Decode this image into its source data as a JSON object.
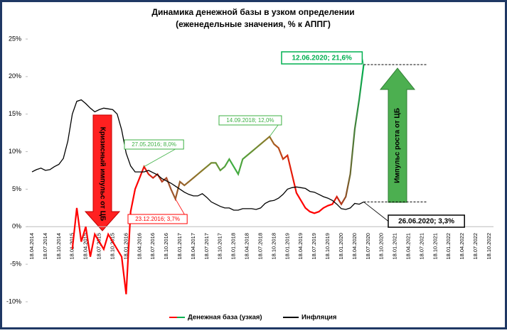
{
  "chart_data": {
    "type": "line",
    "title": "Динамика денежной базы в узком определении",
    "subtitle": "(еженедельные значения, % к АППГ)",
    "categories": [
      "18.04.2014",
      null,
      null,
      "18.07.2014",
      null,
      null,
      "18.10.2014",
      null,
      null,
      "18.01.2015",
      null,
      null,
      "18.04.2015",
      null,
      null,
      "18.07.2015",
      null,
      null,
      "18.10.2015",
      null,
      null,
      "18.01.2016",
      null,
      null,
      "18.04.2016",
      null,
      null,
      "18.07.2016",
      null,
      null,
      "18.10.2016",
      null,
      null,
      "18.01.2017",
      null,
      null,
      "18.04.2017",
      null,
      null,
      "18.07.2017",
      null,
      null,
      "18.10.2017",
      null,
      null,
      "18.01.2018",
      null,
      null,
      "18.04.2018",
      null,
      null,
      "18.07.2018",
      null,
      null,
      "18.10.2018",
      null,
      null,
      "18.01.2019",
      null,
      null,
      "18.04.2019",
      null,
      null,
      "18.07.2019",
      null,
      null,
      "18.10.2019",
      null,
      null,
      "18.01.2020",
      null,
      null,
      "18.04.2020",
      null,
      null,
      "18.07.2020",
      null,
      null,
      "18.10.2020",
      null,
      null,
      "18.01.2021",
      null,
      null,
      "18.04.2021",
      null,
      null,
      "18.07.2021",
      null,
      null,
      "18.10.2021",
      null,
      null,
      "18.01.2022",
      null,
      null,
      "18.04.2022",
      null,
      null,
      "18.07.2022",
      null,
      null,
      "18.10.2022"
    ],
    "series": [
      {
        "name": "Денежная база (узкая)",
        "color": "#c00000",
        "gradient": [
          "#ff0000",
          "#ff0000",
          "#ff0000",
          "#a0522d",
          "#8b7a2a",
          "#3cb043",
          "#8b7a2a",
          "#ff0000",
          "#ff0000",
          "#00b050"
        ],
        "values": [
          null,
          null,
          null,
          null,
          null,
          null,
          null,
          null,
          null,
          -3,
          2.5,
          -2,
          0,
          -4,
          -1,
          -2,
          -3,
          -1,
          -2,
          -3,
          -4,
          -9,
          2,
          5,
          6.5,
          8,
          7,
          6.5,
          7,
          6,
          6.5,
          5,
          3.7,
          6,
          5.5,
          6,
          6.5,
          7,
          7.5,
          8,
          8.5,
          8.5,
          7.5,
          8,
          9,
          8,
          7,
          9,
          9.5,
          10,
          10.5,
          11,
          11.5,
          12,
          11,
          10.5,
          9,
          9.5,
          7,
          4.5,
          3.5,
          2.5,
          2,
          1.8,
          2,
          2.5,
          2.8,
          3,
          4,
          3,
          4,
          7,
          13,
          17,
          21.6,
          null,
          null,
          null,
          null,
          null,
          null,
          null,
          null,
          null,
          null,
          null,
          null,
          null,
          null,
          null,
          null,
          null,
          null,
          null,
          null,
          null,
          null,
          null,
          null,
          null,
          null,
          null,
          null
        ]
      },
      {
        "name": "Инфляция",
        "color": "#000000",
        "values": [
          7.3,
          7.6,
          7.8,
          7.5,
          7.6,
          8.0,
          8.3,
          9.1,
          11.4,
          15.0,
          16.7,
          16.9,
          16.4,
          15.8,
          15.3,
          15.6,
          15.8,
          15.7,
          15.6,
          15.0,
          12.9,
          9.8,
          8.1,
          7.3,
          7.3,
          7.3,
          7.5,
          7.2,
          6.9,
          6.4,
          6.1,
          5.8,
          5.4,
          5.0,
          4.6,
          4.3,
          4.1,
          4.1,
          4.4,
          3.9,
          3.3,
          3.0,
          2.7,
          2.5,
          2.5,
          2.2,
          2.2,
          2.4,
          2.4,
          2.4,
          2.3,
          2.5,
          3.1,
          3.4,
          3.5,
          3.8,
          4.3,
          5.0,
          5.2,
          5.3,
          5.2,
          5.1,
          4.7,
          4.6,
          4.3,
          4.0,
          3.8,
          3.5,
          3.0,
          2.4,
          2.3,
          2.5,
          3.1,
          3.0,
          3.3,
          null,
          null,
          null,
          null,
          null,
          null,
          null,
          null,
          null,
          null,
          null,
          null,
          null,
          null,
          null,
          null,
          null,
          null,
          null,
          null,
          null,
          null,
          null,
          null,
          null,
          null,
          null,
          null
        ]
      }
    ],
    "ylim": [
      -10,
      25
    ],
    "yticks": [
      {
        "value": -10,
        "label": "-10%"
      },
      {
        "value": -5,
        "label": "-5%"
      },
      {
        "value": 0,
        "label": "0%"
      },
      {
        "value": 5,
        "label": "5%"
      },
      {
        "value": 10,
        "label": "10%"
      },
      {
        "value": 15,
        "label": "15%"
      },
      {
        "value": 20,
        "label": "20%"
      },
      {
        "value": 25,
        "label": "25%"
      }
    ],
    "annotations": [
      {
        "text": "27.05.2016; 8,0%",
        "color": "#3cb043"
      },
      {
        "text": "23.12.2016; 3,7%",
        "color": "#ff0000"
      },
      {
        "text": "14.09.2018; 12,0%",
        "color": "#3cb043"
      },
      {
        "text": "12.06.2020; 21,6%",
        "color": "#00b050"
      },
      {
        "text": "26.06.2020; 3,3%",
        "color": "#000000"
      },
      {
        "text": "Кризисный импульс от ЦБ",
        "color": "#ff2020"
      },
      {
        "text": "Импульс роста от ЦБ",
        "color": "#4caf50"
      }
    ],
    "legend": "bottom",
    "grid": false
  }
}
